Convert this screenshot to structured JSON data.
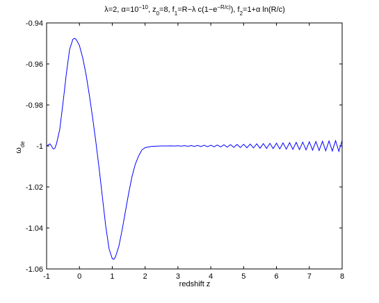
{
  "chart_data": {
    "type": "line",
    "title_parts": [
      {
        "text": "λ=2, α=10"
      },
      {
        "text": "−10",
        "script": "super"
      },
      {
        "text": ", z"
      },
      {
        "text": "0",
        "script": "sub"
      },
      {
        "text": "=8, f"
      },
      {
        "text": "1",
        "script": "sub"
      },
      {
        "text": "=R−λ c(1−e"
      },
      {
        "text": "−R/c)",
        "script": "super"
      },
      {
        "text": "), f"
      },
      {
        "text": "2",
        "script": "sub"
      },
      {
        "text": "=1+α ln(R/c)"
      }
    ],
    "xlabel": "redshift z",
    "ylabel_parts": [
      {
        "text": "ω"
      },
      {
        "text": "de",
        "script": "sub"
      }
    ],
    "xlim": [
      -1,
      8
    ],
    "ylim": [
      -1.06,
      -0.94
    ],
    "xticks": [
      -1,
      0,
      1,
      2,
      3,
      4,
      5,
      6,
      7,
      8
    ],
    "yticks": [
      -1.06,
      -1.04,
      -1.02,
      -1,
      -0.98,
      -0.96,
      -0.94
    ],
    "series": [
      {
        "color": "#0000ff",
        "x": [
          -1,
          -0.95,
          -0.9,
          -0.85,
          -0.8,
          -0.75,
          -0.7,
          -0.6,
          -0.5,
          -0.4,
          -0.3,
          -0.2,
          -0.15,
          -0.1,
          0,
          0.1,
          0.2,
          0.3,
          0.4,
          0.5,
          0.6,
          0.7,
          0.8,
          0.9,
          1.0,
          1.05,
          1.1,
          1.2,
          1.3,
          1.4,
          1.5,
          1.6,
          1.7,
          1.8,
          1.9,
          2.0,
          2.2,
          2.5,
          2.6,
          2.7,
          2.8,
          2.9,
          3.0,
          3.1,
          3.2,
          3.3,
          3.4,
          3.5,
          3.6,
          3.7,
          3.8,
          3.9,
          4.0,
          4.1,
          4.2,
          4.3,
          4.4,
          4.5,
          4.6,
          4.7,
          4.8,
          4.9,
          5.0,
          5.1,
          5.2,
          5.3,
          5.4,
          5.5,
          5.6,
          5.7,
          5.8,
          5.9,
          6.0,
          6.1,
          6.2,
          6.3,
          6.4,
          6.5,
          6.6,
          6.7,
          6.8,
          6.9,
          7.0,
          7.1,
          7.2,
          7.3,
          7.4,
          7.5,
          7.6,
          7.7,
          7.8,
          7.9,
          8.0
        ],
        "values": [
          -1.0,
          -0.9995,
          -0.999,
          -1.0,
          -1.0015,
          -1.0012,
          -0.999,
          -0.992,
          -0.979,
          -0.965,
          -0.953,
          -0.948,
          -0.9475,
          -0.948,
          -0.951,
          -0.957,
          -0.965,
          -0.975,
          -0.986,
          -0.998,
          -1.011,
          -1.025,
          -1.039,
          -1.05,
          -1.055,
          -1.0553,
          -1.054,
          -1.049,
          -1.041,
          -1.032,
          -1.023,
          -1.015,
          -1.009,
          -1.005,
          -1.002,
          -1.0008,
          -1.0002,
          -1.0,
          -0.99999,
          -1.00002,
          -0.99997,
          -1.00005,
          -0.99993,
          -1.0001,
          -0.99988,
          -1.00015,
          -0.99982,
          -1.00021,
          -0.99976,
          -1.00028,
          -0.99969,
          -1.00035,
          -0.99962,
          -1.00042,
          -0.99954,
          -1.0005,
          -0.99945,
          -1.00059,
          -0.99936,
          -1.00068,
          -0.99927,
          -1.00078,
          -0.99917,
          -1.00088,
          -0.99907,
          -1.00098,
          -0.99896,
          -1.00109,
          -0.99885,
          -1.0012,
          -0.99874,
          -1.00131,
          -0.99863,
          -1.00143,
          -0.99851,
          -1.00155,
          -0.99839,
          -1.00167,
          -0.99826,
          -1.0018,
          -0.99813,
          -1.00193,
          -0.998,
          -1.00207,
          -0.99787,
          -1.0022,
          -0.99773,
          -1.00234,
          -0.99759,
          -1.00248,
          -0.99744,
          -1.00263,
          -0.9973
        ]
      }
    ]
  }
}
